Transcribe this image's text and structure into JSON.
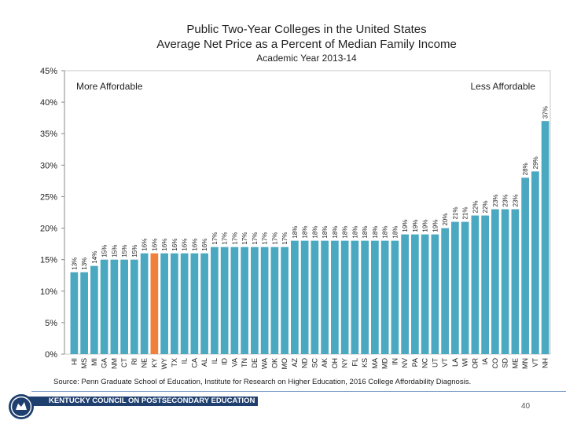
{
  "header": {
    "title_line1": "Public Two-Year Colleges in the United States",
    "title_line2": "Average Net Price as a Percent of Median Family Income",
    "title_line3": "Academic Year 2013-14"
  },
  "chart_data": {
    "type": "bar",
    "title": "Public Two-Year Colleges in the United States — Average Net Price as a Percent of Median Family Income",
    "subtitle": "Academic Year 2013-14",
    "categories": [
      "HI",
      "MS",
      "MI",
      "GA",
      "NM",
      "CT",
      "RI",
      "NE",
      "KY",
      "WY",
      "TX",
      "IL",
      "CA",
      "AL",
      "IL",
      "ID",
      "VA",
      "TN",
      "DE",
      "WA",
      "OK",
      "MO",
      "AZ",
      "ND",
      "SC",
      "AK",
      "OH",
      "NY",
      "FL",
      "KS",
      "MA",
      "MD",
      "IN",
      "NV",
      "PA",
      "NC",
      "UT",
      "VT",
      "LA",
      "WI",
      "OR",
      "IA",
      "CO",
      "SD",
      "ME",
      "MN",
      "VT",
      "NH"
    ],
    "values": [
      13,
      13,
      14,
      15,
      15,
      15,
      15,
      16,
      16,
      16,
      16,
      16,
      16,
      16,
      17,
      17,
      17,
      17,
      17,
      17,
      17,
      17,
      18,
      18,
      18,
      18,
      18,
      18,
      18,
      18,
      18,
      18,
      18,
      19,
      19,
      19,
      19,
      20,
      21,
      21,
      22,
      22,
      23,
      23,
      23,
      28,
      29,
      37
    ],
    "value_labels": [
      "13%",
      "13%",
      "14%",
      "15%",
      "15%",
      "15%",
      "15%",
      "16%",
      "16%",
      "16%",
      "16%",
      "16%",
      "16%",
      "16%",
      "17%",
      "17%",
      "17%",
      "17%",
      "17%",
      "17%",
      "17%",
      "17%",
      "18%",
      "18%",
      "18%",
      "18%",
      "18%",
      "18%",
      "18%",
      "18%",
      "18%",
      "18%",
      "18%",
      "19%",
      "19%",
      "19%",
      "19%",
      "20%",
      "21%",
      "21%",
      "22%",
      "22%",
      "23%",
      "23%",
      "23%",
      "28%",
      "29%",
      "37%"
    ],
    "highlight_index": 8,
    "highlight_color": "#f0803c",
    "bar_color": "#4aa8c0",
    "ylim": [
      0,
      45
    ],
    "yticks": [
      "0%",
      "5%",
      "10%",
      "15%",
      "20%",
      "25%",
      "30%",
      "35%",
      "40%",
      "45%"
    ],
    "annotations": {
      "left": "More Affordable",
      "right": "Less Affordable"
    },
    "xlabel": "",
    "ylabel": ""
  },
  "source": "Source:  Penn Graduate School of Education, Institute for Research on Higher Education, 2016 College Affordability Diagnosis.",
  "footer": {
    "org_name": "KENTUCKY COUNCIL ON POSTSECONDARY EDUCATION",
    "page_number": "40"
  }
}
